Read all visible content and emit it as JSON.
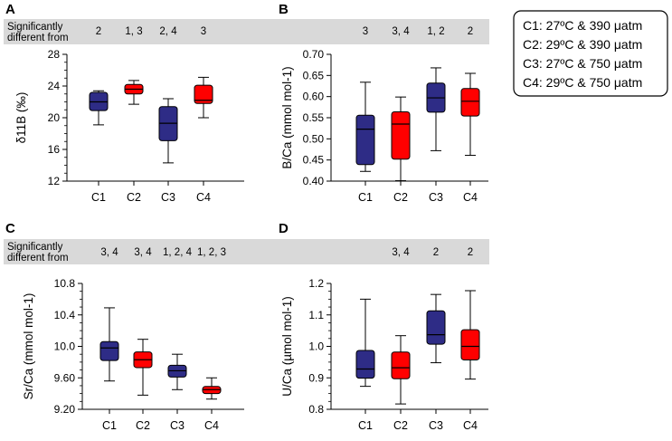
{
  "figure": {
    "significance_label": [
      "Significantly",
      "different from"
    ],
    "legend": [
      {
        "code": "C1",
        "text": "C1: 27ºC & 390 μatm"
      },
      {
        "code": "C2",
        "text": "C2: 29ºC & 390 μatm"
      },
      {
        "code": "C3",
        "text": "C3: 27ºC & 750 μatm"
      },
      {
        "code": "C4",
        "text": "C4: 29ºC & 750 μatm"
      }
    ],
    "colors": {
      "blue_box": "#2e2c86",
      "red_box": "#ff0000",
      "sig_band": "#d9d9d9"
    }
  },
  "chart_data": [
    {
      "panel": "A",
      "type": "box",
      "ylabel": "δ11B (‰)",
      "ylim": [
        12,
        28
      ],
      "yticks": [
        "12",
        "16",
        "20",
        "24",
        "28"
      ],
      "categories": [
        "C1",
        "C2",
        "C3",
        "C4"
      ],
      "significance": [
        "2",
        "1, 3",
        "2, 4",
        "3"
      ],
      "boxes": [
        {
          "cat": "C1",
          "color": "blue",
          "min": 19.1,
          "q1": 20.9,
          "median": 22.0,
          "q3": 23.2,
          "max": 23.4
        },
        {
          "cat": "C2",
          "color": "red",
          "min": 21.7,
          "q1": 23.0,
          "median": 23.6,
          "q3": 24.2,
          "max": 24.7
        },
        {
          "cat": "C3",
          "color": "blue",
          "min": 14.3,
          "q1": 17.1,
          "median": 19.3,
          "q3": 21.4,
          "max": 22.4
        },
        {
          "cat": "C4",
          "color": "red",
          "min": 20.0,
          "q1": 21.8,
          "median": 22.2,
          "q3": 24.1,
          "max": 25.1
        }
      ]
    },
    {
      "panel": "B",
      "type": "box",
      "ylabel": "B/Ca (mmol mol-1)",
      "ylim": [
        0.4,
        0.7
      ],
      "yticks": [
        "0.40",
        "0.45",
        "0.50",
        "0.55",
        "0.60",
        "0.65",
        "0.70"
      ],
      "categories": [
        "C1",
        "C2",
        "C3",
        "C4"
      ],
      "significance": [
        "3",
        "3, 4",
        "1, 2",
        "2"
      ],
      "boxes": [
        {
          "cat": "C1",
          "color": "blue",
          "min": 0.423,
          "q1": 0.439,
          "median": 0.523,
          "q3": 0.556,
          "max": 0.634
        },
        {
          "cat": "C2",
          "color": "red",
          "min": 0.401,
          "q1": 0.452,
          "median": 0.535,
          "q3": 0.564,
          "max": 0.599
        },
        {
          "cat": "C3",
          "color": "blue",
          "min": 0.472,
          "q1": 0.563,
          "median": 0.597,
          "q3": 0.632,
          "max": 0.668
        },
        {
          "cat": "C4",
          "color": "red",
          "min": 0.461,
          "q1": 0.554,
          "median": 0.589,
          "q3": 0.619,
          "max": 0.655
        }
      ]
    },
    {
      "panel": "C",
      "type": "box",
      "ylabel": "Sr/Ca (mmol mol-1)",
      "ylim": [
        9.2,
        10.8
      ],
      "yticks": [
        "9.20",
        "9.60",
        "10.0",
        "10.4",
        "10.8"
      ],
      "categories": [
        "C1",
        "C2",
        "C3",
        "C4"
      ],
      "significance": [
        "3, 4",
        "3, 4",
        "1, 2, 4",
        "1, 2, 3"
      ],
      "boxes": [
        {
          "cat": "C1",
          "color": "blue",
          "min": 9.56,
          "q1": 9.82,
          "median": 9.98,
          "q3": 10.06,
          "max": 10.49
        },
        {
          "cat": "C2",
          "color": "red",
          "min": 9.38,
          "q1": 9.73,
          "median": 9.83,
          "q3": 9.93,
          "max": 10.09
        },
        {
          "cat": "C3",
          "color": "blue",
          "min": 9.45,
          "q1": 9.61,
          "median": 9.69,
          "q3": 9.76,
          "max": 9.9
        },
        {
          "cat": "C4",
          "color": "red",
          "min": 9.33,
          "q1": 9.4,
          "median": 9.45,
          "q3": 9.49,
          "max": 9.6
        }
      ]
    },
    {
      "panel": "D",
      "type": "box",
      "ylabel": "U/Ca (µmol mol-1)",
      "ylim": [
        0.8,
        1.2
      ],
      "yticks": [
        "0.8",
        "0.9",
        "1.0",
        "1.1",
        "1.2"
      ],
      "categories": [
        "C1",
        "C2",
        "C3",
        "C4"
      ],
      "significance": [
        "",
        "3, 4",
        "2",
        "2"
      ],
      "boxes": [
        {
          "cat": "C1",
          "color": "blue",
          "min": 0.873,
          "q1": 0.899,
          "median": 0.928,
          "q3": 0.987,
          "max": 1.15
        },
        {
          "cat": "C2",
          "color": "red",
          "min": 0.817,
          "q1": 0.897,
          "median": 0.932,
          "q3": 0.982,
          "max": 1.034
        },
        {
          "cat": "C3",
          "color": "blue",
          "min": 0.948,
          "q1": 1.007,
          "median": 1.037,
          "q3": 1.113,
          "max": 1.165
        },
        {
          "cat": "C4",
          "color": "red",
          "min": 0.896,
          "q1": 0.957,
          "median": 1.0,
          "q3": 1.053,
          "max": 1.177
        }
      ]
    }
  ]
}
